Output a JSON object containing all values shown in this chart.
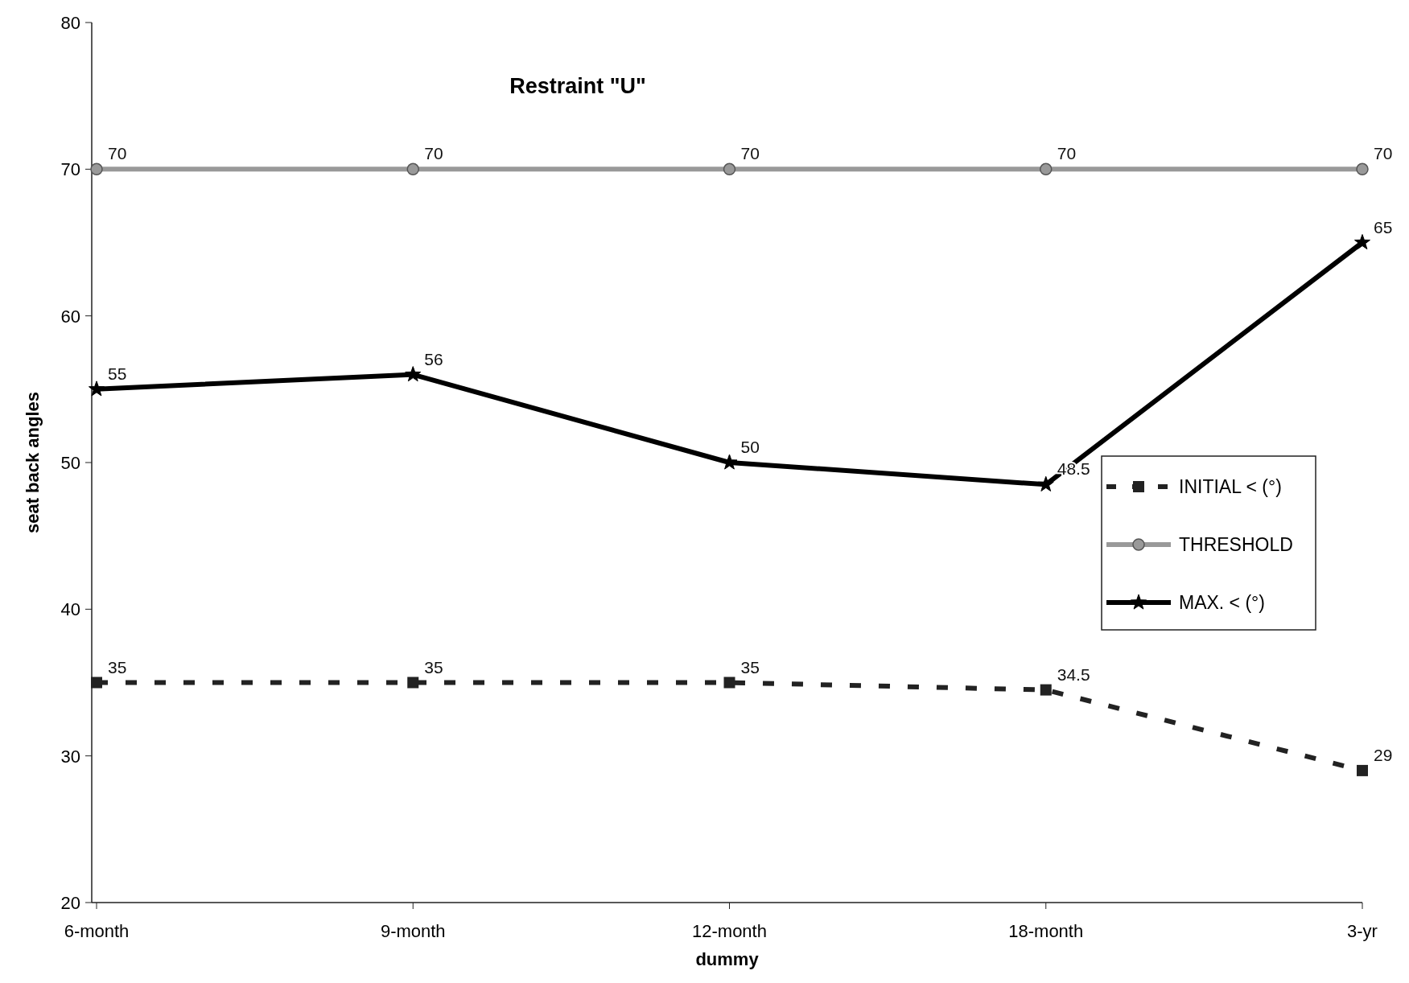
{
  "chart_data": {
    "type": "line",
    "title": "Restraint \"U\"",
    "xlabel": "dummy",
    "ylabel": "seat back angles",
    "categories": [
      "6-month",
      "9-month",
      "12-month",
      "18-month",
      "3-yr"
    ],
    "series": [
      {
        "name": "INITIAL < (°)",
        "color": "#222222",
        "values": [
          35,
          35,
          35,
          34.5,
          29
        ],
        "marker": "square",
        "line_style": "dashed"
      },
      {
        "name": "THRESHOLD",
        "color": "#999999",
        "values": [
          70,
          70,
          70,
          70,
          70
        ],
        "marker": "circle",
        "line_style": "solid"
      },
      {
        "name": "MAX. < (°)",
        "color": "#000000",
        "values": [
          55,
          56,
          50,
          48.5,
          65
        ],
        "marker": "star",
        "line_style": "solid"
      }
    ],
    "ylim": [
      20,
      80
    ],
    "yticks": [
      20,
      30,
      40,
      50,
      60,
      70,
      80
    ],
    "grid": false,
    "legend": "right",
    "data_labels": true
  }
}
